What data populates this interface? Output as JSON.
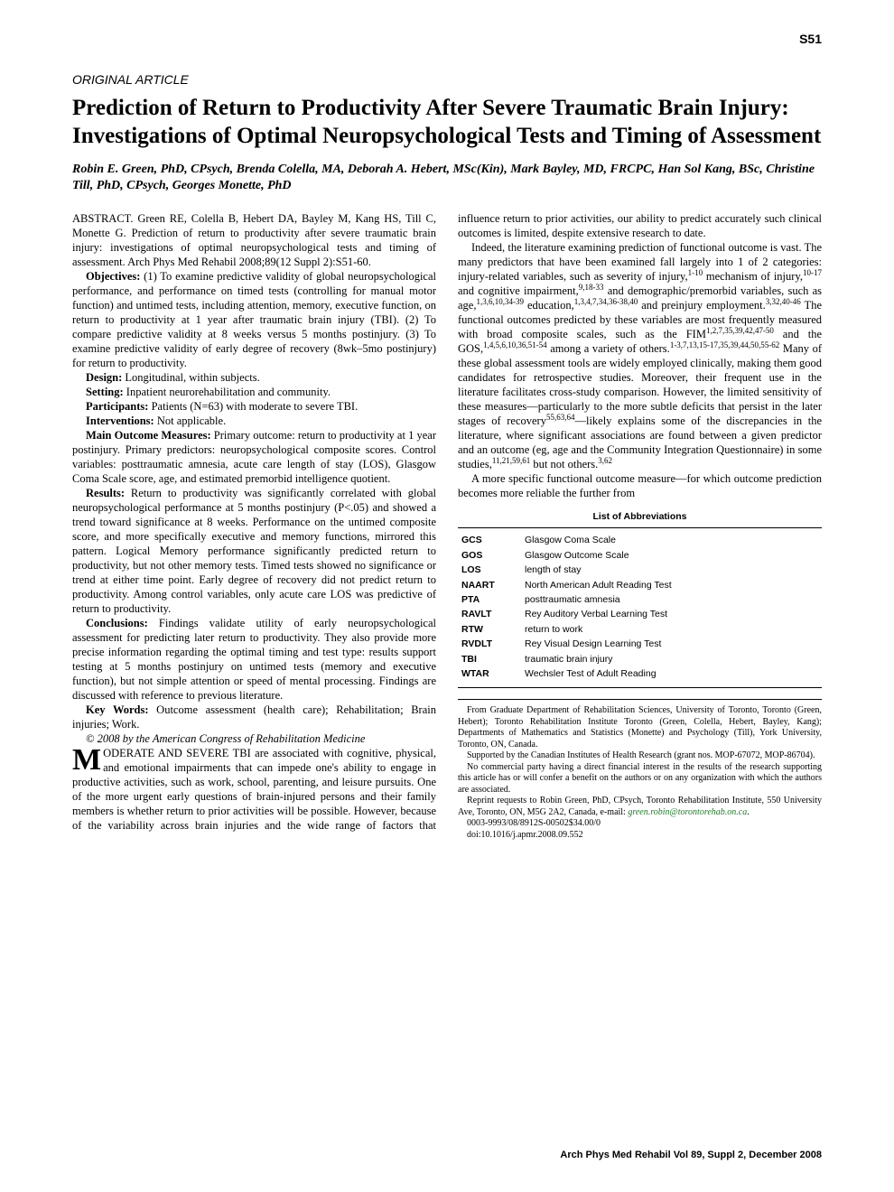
{
  "page_number": "S51",
  "article_type": "ORIGINAL ARTICLE",
  "title": "Prediction of Return to Productivity After Severe Traumatic Brain Injury: Investigations of Optimal Neuropsychological Tests and Timing of Assessment",
  "authors": "Robin E. Green, PhD, CPsych, Brenda Colella, MA, Deborah A. Hebert, MSc(Kin), Mark Bayley, MD, FRCPC, Han Sol Kang, BSc, Christine Till, PhD, CPsych, Georges Monette, PhD",
  "abstract_citation": "ABSTRACT. Green RE, Colella B, Hebert DA, Bayley M, Kang HS, Till C, Monette G. Prediction of return to productivity after severe traumatic brain injury: investigations of optimal neuropsychological tests and timing of assessment. Arch Phys Med Rehabil 2008;89(12 Suppl 2):S51-60.",
  "objectives_label": "Objectives:",
  "objectives": " (1) To examine predictive validity of global neuropsychological performance, and performance on timed tests (controlling for manual motor function) and untimed tests, including attention, memory, executive function, on return to productivity at 1 year after traumatic brain injury (TBI). (2) To compare predictive validity at 8 weeks versus 5 months postinjury. (3) To examine predictive validity of early degree of recovery (8wk–5mo postinjury) for return to productivity.",
  "design_label": "Design:",
  "design": " Longitudinal, within subjects.",
  "setting_label": "Setting:",
  "setting": " Inpatient neurorehabilitation and community.",
  "participants_label": "Participants:",
  "participants": " Patients (N=63) with moderate to severe TBI.",
  "interventions_label": "Interventions:",
  "interventions": " Not applicable.",
  "outcomes_label": "Main Outcome Measures:",
  "outcomes": " Primary outcome: return to productivity at 1 year postinjury. Primary predictors: neuropsychological composite scores. Control variables: posttraumatic amnesia, acute care length of stay (LOS), Glasgow Coma Scale score, age, and estimated premorbid intelligence quotient.",
  "results_label": "Results:",
  "results": " Return to productivity was significantly correlated with global neuropsychological performance at 5 months postinjury (P<.05) and showed a trend toward significance at 8 weeks. Performance on the untimed composite score, and more specifically executive and memory functions, mirrored this pattern. Logical Memory performance significantly predicted return to productivity, but not other memory tests. Timed tests showed no significance or trend at either time point. Early degree of recovery did not predict return to productivity. Among control variables, only acute care LOS was predictive of return to productivity.",
  "conclusions_label": "Conclusions:",
  "conclusions": " Findings validate utility of early neuropsychological assessment for predicting later return to productivity. They also provide more precise information regarding the optimal timing and test type: results support testing at 5 months postinjury on untimed tests (memory and executive function), but not simple attention or speed of mental processing. Findings are discussed with reference to previous literature.",
  "keywords_label": "Key Words:",
  "keywords": " Outcome assessment (health care); Rehabilitation; Brain injuries; Work.",
  "copyright": "© 2008 by the American Congress of Rehabilitation Medicine",
  "body_p1_dropcap": "M",
  "body_p1_caps": "ODERATE AND SEVERE TBI",
  "body_p1_rest": " are associated with cognitive, physical, and emotional impairments that can impede one's ability to engage in productive activities, such as work, school, parenting, and leisure pursuits. One of the more urgent early questions of brain-injured persons and their family members is whether return to prior activities will be possible. However, because of the variability across brain injuries and the wide range of factors that influence return to prior activities, our ability to predict accurately such clinical outcomes is limited, despite extensive research to date.",
  "body_p2_a": "Indeed, the literature examining prediction of functional outcome is vast. The many predictors that have been examined fall largely into 1 of 2 categories: injury-related variables, such as severity of injury,",
  "body_p2_s1": "1-10",
  "body_p2_b": " mechanism of injury,",
  "body_p2_s2": "10-17",
  "body_p2_c": " and cognitive impairment,",
  "body_p2_s3": "9,18-33",
  "body_p2_d": " and demographic/premorbid variables, such as age,",
  "body_p2_s4": "1,3,6,10,34-39",
  "body_p2_e": " education,",
  "body_p2_s5": "1,3,4,7,34,36-38,40",
  "body_p2_f": " and preinjury employment.",
  "body_p2_s6": "3,32,40-46",
  "body_p2_g": " The functional outcomes predicted by these variables are most frequently measured with broad composite scales, such as the FIM",
  "body_p2_s7": "1,2,7,35,39,42,47-50",
  "body_p2_h": " and the GOS,",
  "body_p2_s8": "1,4,5,6,10,36,51-54",
  "body_p2_i": " among a variety of others.",
  "body_p2_s9": "1-3,7,13,15-17,35,39,44,50,55-62",
  "body_p2_j": " Many of these global assessment tools are widely employed clinically, making them good candidates for retrospective studies. Moreover, their frequent use in the literature facilitates cross-study comparison. However, the limited sensitivity of these measures—particularly to the more subtle deficits that persist in the later stages of recovery",
  "body_p2_s10": "55,63,64",
  "body_p2_k": "—likely explains some of the discrepancies in the literature, where significant associations are found between a given predictor and an outcome (eg, age and the Community Integration Questionnaire) in some studies,",
  "body_p2_s11": "11,21,59,61",
  "body_p2_l": " but not others.",
  "body_p2_s12": "3,62",
  "body_p3": "A more specific functional outcome measure—for which outcome prediction becomes more reliable the further from",
  "footnotes": {
    "from": "From Graduate Department of Rehabilitation Sciences, University of Toronto, Toronto (Green, Hebert); Toronto Rehabilitation Institute Toronto (Green, Colella, Hebert, Bayley, Kang); Departments of Mathematics and Statistics (Monette) and Psychology (Till), York University, Toronto, ON, Canada.",
    "supported": "Supported by the Canadian Institutes of Health Research (grant nos. MOP-67072, MOP-86704).",
    "conflict": "No commercial party having a direct financial interest in the results of the research supporting this article has or will confer a benefit on the authors or on any organization with which the authors are associated.",
    "reprint_a": "Reprint requests to Robin Green, PhD, CPsych, Toronto Rehabilitation Institute, 550 University Ave, Toronto, ON, M5G 2A2, Canada, e-mail: ",
    "reprint_email": "green.robin@torontorehab.on.ca",
    "reprint_b": ".",
    "issn": "0003-9993/08/8912S-00502$34.00/0",
    "doi": "doi:10.1016/j.apmr.2008.09.552"
  },
  "abbrev_title": "List of Abbreviations",
  "abbreviations": [
    {
      "key": "GCS",
      "val": "Glasgow Coma Scale"
    },
    {
      "key": "GOS",
      "val": "Glasgow Outcome Scale"
    },
    {
      "key": "LOS",
      "val": "length of stay"
    },
    {
      "key": "NAART",
      "val": "North American Adult Reading Test"
    },
    {
      "key": "PTA",
      "val": "posttraumatic amnesia"
    },
    {
      "key": "RAVLT",
      "val": "Rey Auditory Verbal Learning Test"
    },
    {
      "key": "RTW",
      "val": "return to work"
    },
    {
      "key": "RVDLT",
      "val": "Rey Visual Design Learning Test"
    },
    {
      "key": "TBI",
      "val": "traumatic brain injury"
    },
    {
      "key": "WTAR",
      "val": "Wechsler Test of Adult Reading"
    }
  ],
  "journal_footer": "Arch Phys Med Rehabil Vol 89, Suppl 2, December 2008"
}
